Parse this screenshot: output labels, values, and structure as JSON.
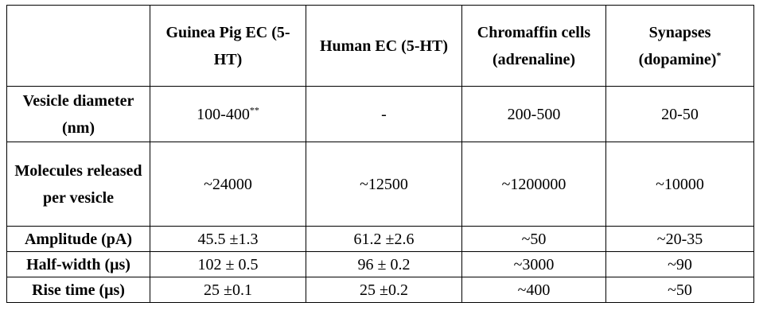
{
  "table": {
    "headers": [
      "",
      "Guinea Pig EC (5-HT)",
      "Human EC (5-HT)",
      "Chromaffin cells (adrenaline)",
      "Synapses (dopamine)"
    ],
    "header_superscripts": [
      "",
      "",
      "",
      "",
      "*"
    ],
    "rows": [
      {
        "label": "Vesicle diameter (nm)",
        "cells": [
          "100-400",
          "-",
          "200-500",
          "20-50"
        ],
        "superscripts": [
          "**",
          "",
          "",
          ""
        ]
      },
      {
        "label": "Molecules released per vesicle",
        "cells": [
          "~24000",
          "~12500",
          "~1200000",
          "~10000"
        ],
        "superscripts": [
          "",
          "",
          "",
          ""
        ]
      },
      {
        "label": "Amplitude (pA)",
        "cells": [
          "45.5 ±1.3",
          "61.2 ±2.6",
          "~50",
          "~20-35"
        ],
        "superscripts": [
          "",
          "",
          "",
          ""
        ]
      },
      {
        "label": "Half-width (μs)",
        "cells": [
          "102 ± 0.5",
          "96 ± 0.2",
          "~3000",
          "~90"
        ],
        "superscripts": [
          "",
          "",
          "",
          ""
        ]
      },
      {
        "label": "Rise time (μs)",
        "cells": [
          "25 ±0.1",
          "25 ±0.2",
          "~400",
          "~50"
        ],
        "superscripts": [
          "",
          "",
          "",
          ""
        ]
      }
    ]
  }
}
